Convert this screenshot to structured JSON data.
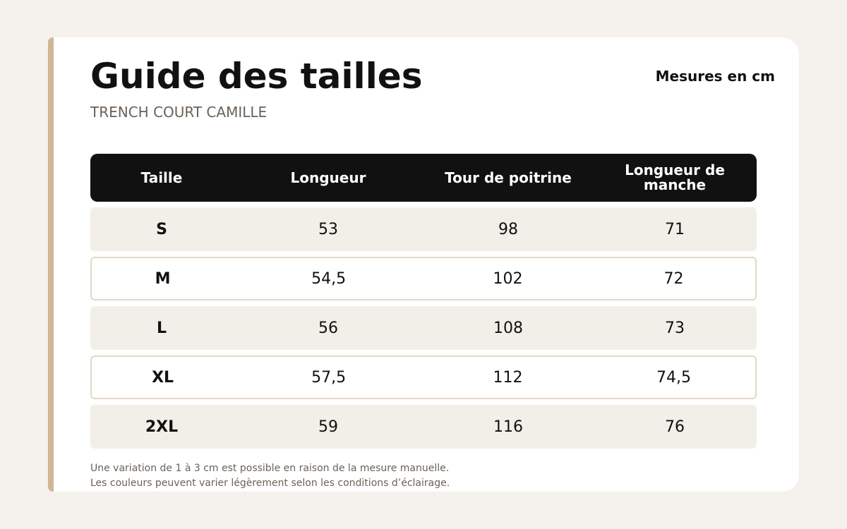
{
  "header": {
    "title": "Guide des tailles",
    "subtitle": "TRENCH COURT CAMILLE",
    "unit_note": "Mesures en cm"
  },
  "table": {
    "columns": [
      "Taille",
      "Longueur",
      "Tour de poitrine",
      "Longueur de manche"
    ],
    "rows": [
      [
        "S",
        "53",
        "98",
        "71"
      ],
      [
        "M",
        "54,5",
        "102",
        "72"
      ],
      [
        "L",
        "56",
        "108",
        "73"
      ],
      [
        "XL",
        "57,5",
        "112",
        "74,5"
      ],
      [
        "2XL",
        "59",
        "116",
        "76"
      ]
    ]
  },
  "footnotes": [
    "Une variation de 1 à 3 cm est possible en raison de la mesure manuelle.",
    "Les couleurs peuvent varier légèrement selon les conditions d’éclairage."
  ],
  "colors": {
    "accent": "#d0b597",
    "header_bg": "#111111",
    "row_shaded": "#f2eee8",
    "row_border": "#e3d7c9",
    "page_bg": "#f5f1ec"
  }
}
